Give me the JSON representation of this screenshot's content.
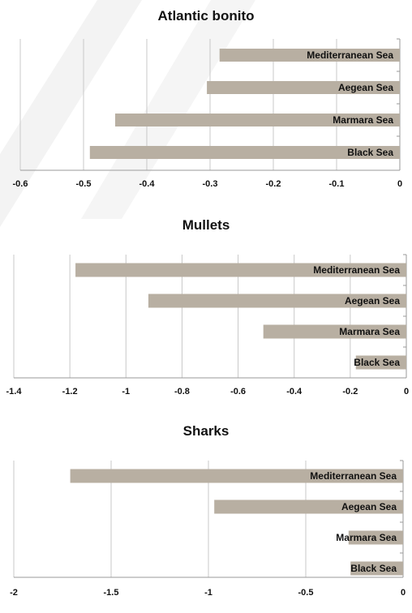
{
  "colors": {
    "bar": "#b8afa2",
    "grid": "#c8c8c8",
    "axis": "#9a9a9a",
    "text": "#111111"
  },
  "chart_data": [
    {
      "type": "bar",
      "orientation": "horizontal",
      "title": "Atlantic bonito",
      "categories": [
        "Mediterranean Sea",
        "Aegean Sea",
        "Marmara Sea",
        "Black Sea"
      ],
      "values": [
        -0.285,
        -0.305,
        -0.45,
        -0.49
      ],
      "xlim": [
        -0.6,
        0
      ],
      "xticks": [
        "-0.6",
        "-0.5",
        "-0.4",
        "-0.3",
        "-0.2",
        "-0.1",
        "0"
      ],
      "tick_values": [
        -0.6,
        -0.5,
        -0.4,
        -0.3,
        -0.2,
        -0.1,
        0
      ],
      "grid": true,
      "legend": "none"
    },
    {
      "type": "bar",
      "orientation": "horizontal",
      "title": "Mullets",
      "categories": [
        "Mediterranean Sea",
        "Aegean Sea",
        "Marmara Sea",
        "Black Sea"
      ],
      "values": [
        -1.18,
        -0.92,
        -0.51,
        -0.18
      ],
      "xlim": [
        -1.4,
        0
      ],
      "xticks": [
        "-1.4",
        "-1.2",
        "-1",
        "-0.8",
        "-0.6",
        "-0.4",
        "-0.2",
        "0"
      ],
      "tick_values": [
        -1.4,
        -1.2,
        -1,
        -0.8,
        -0.6,
        -0.4,
        -0.2,
        0
      ],
      "grid": true,
      "legend": "none"
    },
    {
      "type": "bar",
      "orientation": "horizontal",
      "title": "Sharks",
      "categories": [
        "Mediterranean Sea",
        "Aegean Sea",
        "Marmara Sea",
        "Black Sea"
      ],
      "values": [
        -1.71,
        -0.97,
        -0.28,
        -0.27
      ],
      "xlim": [
        -2,
        0
      ],
      "xticks": [
        "-2",
        "-1.5",
        "-1",
        "-0.5",
        "0"
      ],
      "tick_values": [
        -2,
        -1.5,
        -1,
        -0.5,
        0
      ],
      "grid": true,
      "legend": "none"
    }
  ]
}
